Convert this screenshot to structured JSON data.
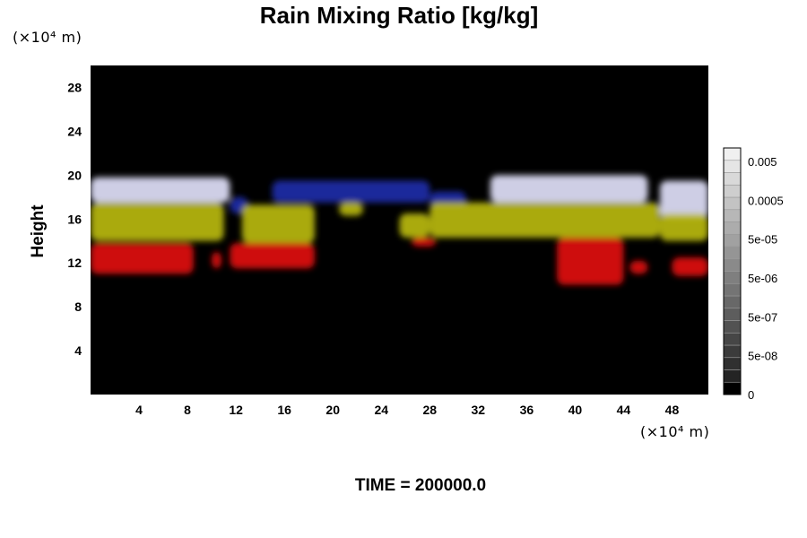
{
  "chart_data": {
    "type": "heatmap",
    "title": "Rain Mixing Ratio [kg/kg]",
    "xlabel": "",
    "ylabel": "Height",
    "x_unit": "(×10⁴ m)",
    "y_unit": "(×10⁴ m)",
    "xlim": [
      0,
      51
    ],
    "ylim": [
      0,
      30
    ],
    "x_ticks": [
      4,
      8,
      12,
      16,
      20,
      24,
      28,
      32,
      36,
      40,
      44,
      48
    ],
    "y_ticks": [
      4,
      8,
      12,
      16,
      20,
      24,
      28
    ],
    "grid": false,
    "background_color": "#000000",
    "colorbar": {
      "position": "right",
      "scale": "log",
      "labels": [
        "0.005",
        "0.0005",
        "5e-05",
        "5e-06",
        "5e-07",
        "5e-08",
        "0"
      ]
    },
    "layers": [
      {
        "color": "#e0e0f8",
        "bands": [
          {
            "x": [
              0,
              11.5
            ],
            "y": [
              17.5,
              19.8
            ]
          },
          {
            "x": [
              33,
              46
            ],
            "y": [
              17.5,
              20
            ]
          },
          {
            "x": [
              47,
              51
            ],
            "y": [
              16,
              19.5
            ]
          }
        ]
      },
      {
        "color": "#1c2ca8",
        "bands": [
          {
            "x": [
              11.5,
              13
            ],
            "y": [
              16.5,
              18
            ]
          },
          {
            "x": [
              15,
              28
            ],
            "y": [
              17.5,
              19.5
            ]
          },
          {
            "x": [
              28,
              31
            ],
            "y": [
              17,
              18.5
            ]
          }
        ]
      },
      {
        "color": "#b8b810",
        "bands": [
          {
            "x": [
              0,
              11
            ],
            "y": [
              14,
              17.5
            ]
          },
          {
            "x": [
              12.5,
              18.5
            ],
            "y": [
              13.8,
              17.3
            ]
          },
          {
            "x": [
              20.5,
              22.5
            ],
            "y": [
              16.3,
              17.5
            ]
          },
          {
            "x": [
              25.5,
              28
            ],
            "y": [
              14.3,
              16.5
            ]
          },
          {
            "x": [
              28,
              47
            ],
            "y": [
              14.3,
              17.5
            ]
          },
          {
            "x": [
              47,
              51
            ],
            "y": [
              14,
              16.5
            ]
          }
        ]
      },
      {
        "color": "#e01010",
        "bands": [
          {
            "x": [
              0,
              8.5
            ],
            "y": [
              11,
              13.8
            ]
          },
          {
            "x": [
              10,
              10.8
            ],
            "y": [
              11.5,
              13
            ]
          },
          {
            "x": [
              11.5,
              18.5
            ],
            "y": [
              11.5,
              13.8
            ]
          },
          {
            "x": [
              26.5,
              28.5
            ],
            "y": [
              13.5,
              14.3
            ]
          },
          {
            "x": [
              38.5,
              44
            ],
            "y": [
              10,
              14.3
            ]
          },
          {
            "x": [
              44.5,
              46
            ],
            "y": [
              11,
              12.2
            ]
          },
          {
            "x": [
              48,
              51
            ],
            "y": [
              10.8,
              12.5
            ]
          }
        ]
      }
    ]
  },
  "footer": {
    "time_text": "TIME = 200000.0"
  }
}
